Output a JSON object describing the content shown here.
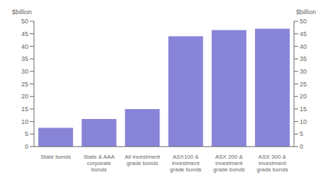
{
  "chart_data": {
    "type": "bar",
    "categories": [
      "State bonds",
      "State & AAA\ncorporate\nbonds",
      "All investment\ngrade bonds",
      "ASX100 &\ninvestment\ngrade bonds",
      "ASX 200 &\ninvestment\ngrade bonds",
      "ASX 300 &\ninvestment\ngrade bonds"
    ],
    "values": [
      7.5,
      11.0,
      15.0,
      44.0,
      46.5,
      47.0
    ],
    "color": "#8884d8",
    "ylim": [
      0,
      50
    ],
    "yticks": [
      0,
      5,
      10,
      15,
      20,
      25,
      30,
      35,
      40,
      45,
      50
    ],
    "y2lim": [
      0,
      50
    ],
    "y2ticks": [
      0,
      5,
      10,
      15,
      20,
      25,
      30,
      35,
      40,
      45,
      50
    ],
    "ylabel": "$billion",
    "y2label": "$billion",
    "grid": false
  }
}
